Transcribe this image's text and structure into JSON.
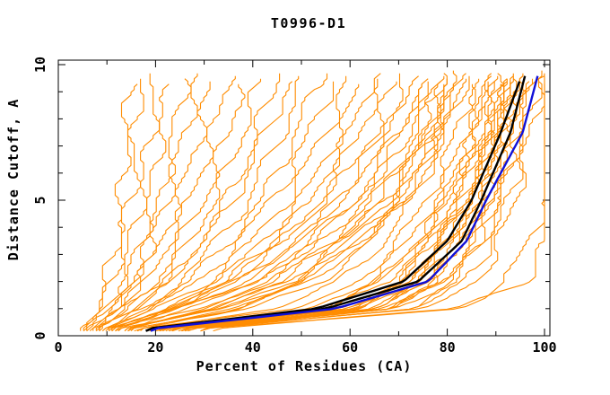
{
  "title": "T0996-D1",
  "chart_data": {
    "type": "line",
    "title": "T0996-D1",
    "xlabel": "Percent of Residues (CA)",
    "ylabel": "Distance Cutoff, A",
    "xlim": [
      0,
      101
    ],
    "ylim": [
      0,
      10.15
    ],
    "grid": false,
    "legend": "none",
    "x_major_ticks": [
      0,
      20,
      40,
      60,
      80,
      100
    ],
    "x_minor_ticks": [
      10,
      30,
      50,
      70,
      90
    ],
    "y_major_ticks": [
      0,
      5,
      10
    ],
    "y_minor_ticks": [
      1,
      2,
      3,
      4,
      6,
      7,
      8,
      9
    ],
    "colors": {
      "orange_models": "#ff8c00",
      "black_models": "#000000",
      "blue_model": "#1010d8",
      "frame": "#000000"
    },
    "anchor_cutoffs": [
      0.25,
      1,
      2,
      3.5,
      5,
      7.5,
      9.6
    ],
    "series": {
      "orange_models": [
        [
          5,
          8,
          10,
          12,
          13,
          14,
          15
        ],
        [
          5,
          9,
          11,
          13,
          15,
          16,
          17
        ],
        [
          6,
          10,
          13,
          15,
          17,
          19,
          20
        ],
        [
          6,
          11,
          14,
          17,
          19,
          21,
          23
        ],
        [
          7,
          12,
          16,
          19,
          21,
          24,
          26
        ],
        [
          6,
          11,
          15,
          19,
          22,
          26,
          29
        ],
        [
          7,
          12,
          17,
          21,
          25,
          29,
          32
        ],
        [
          7,
          13,
          18,
          23,
          27,
          32,
          35
        ],
        [
          8,
          14,
          20,
          25,
          30,
          35,
          38
        ],
        [
          8,
          15,
          22,
          27,
          32,
          38,
          42
        ],
        [
          9,
          16,
          23,
          29,
          35,
          41,
          45
        ],
        [
          8,
          15,
          22,
          30,
          36,
          43,
          48
        ],
        [
          9,
          17,
          25,
          33,
          39,
          46,
          51
        ],
        [
          9,
          18,
          27,
          35,
          42,
          49,
          54
        ],
        [
          10,
          19,
          29,
          37,
          44,
          52,
          57
        ],
        [
          10,
          20,
          31,
          40,
          47,
          55,
          60
        ],
        [
          11,
          22,
          33,
          42,
          50,
          58,
          63
        ],
        [
          11,
          23,
          35,
          44,
          52,
          60,
          65
        ],
        [
          12,
          24,
          36,
          46,
          54,
          62,
          67
        ],
        [
          10,
          22,
          34,
          46,
          55,
          65,
          70
        ],
        [
          11,
          24,
          37,
          49,
          58,
          68,
          73
        ],
        [
          12,
          26,
          40,
          52,
          61,
          70,
          75
        ],
        [
          12,
          28,
          43,
          54,
          63,
          72,
          77
        ],
        [
          13,
          30,
          45,
          56,
          65,
          74,
          79
        ],
        [
          14,
          32,
          47,
          58,
          67,
          76,
          80
        ],
        [
          14,
          34,
          49,
          60,
          69,
          77,
          81
        ],
        [
          15,
          36,
          51,
          62,
          71,
          78,
          82
        ],
        [
          13,
          28,
          41,
          53,
          62,
          71,
          76
        ],
        [
          15,
          33,
          48,
          59,
          68,
          76,
          80
        ],
        [
          16,
          35,
          50,
          61,
          70,
          78,
          82
        ],
        [
          16,
          37,
          52,
          63,
          72,
          79,
          83
        ],
        [
          11,
          25,
          38,
          50,
          58,
          67,
          72
        ],
        [
          13,
          31,
          46,
          57,
          66,
          75,
          79
        ],
        [
          17,
          45,
          58,
          67,
          73,
          80,
          84
        ],
        [
          15,
          40,
          54,
          64,
          71,
          78,
          82
        ],
        [
          21,
          59,
          70,
          77,
          82,
          88,
          90
        ],
        [
          22,
          62,
          73,
          79,
          85,
          90,
          92
        ],
        [
          16,
          50,
          62,
          70,
          76,
          82,
          86
        ],
        [
          17,
          52,
          64,
          72,
          78,
          84,
          87
        ],
        [
          18,
          54,
          66,
          74,
          79,
          85,
          88
        ],
        [
          18,
          56,
          68,
          75,
          80,
          86,
          89
        ],
        [
          19,
          58,
          70,
          76,
          81,
          87,
          90
        ],
        [
          20,
          60,
          71,
          77,
          82,
          88,
          91
        ],
        [
          20,
          62,
          72,
          78,
          83,
          89,
          92
        ],
        [
          21,
          63,
          73,
          79,
          84,
          90,
          92
        ],
        [
          22,
          64,
          74,
          80,
          85,
          90,
          93
        ],
        [
          22,
          65,
          75,
          81,
          86,
          91,
          93
        ],
        [
          23,
          66,
          76,
          82,
          87,
          91,
          94
        ],
        [
          24,
          67,
          77,
          83,
          87,
          92,
          94
        ],
        [
          19,
          55,
          67,
          74,
          80,
          86,
          89
        ],
        [
          21,
          61,
          72,
          78,
          84,
          89,
          91
        ],
        [
          23,
          65,
          75,
          81,
          86,
          90,
          93
        ],
        [
          24,
          68,
          78,
          83,
          88,
          92,
          95
        ],
        [
          25,
          69,
          79,
          85,
          89,
          93,
          96
        ],
        [
          26,
          70,
          80,
          86,
          90,
          94,
          97
        ],
        [
          27,
          72,
          82,
          87,
          91,
          95,
          98
        ],
        [
          28,
          74,
          84,
          89,
          93,
          96,
          99
        ],
        [
          30,
          82,
          96,
          100,
          100,
          100,
          100
        ],
        [
          32,
          82,
          92,
          97,
          100,
          100,
          100
        ],
        [
          26,
          68,
          80,
          86,
          90,
          94,
          96
        ],
        [
          29,
          76,
          86,
          91,
          94,
          97,
          100
        ]
      ],
      "black_models": [
        [
          18,
          55,
          74,
          83,
          87,
          93,
          96
        ],
        [
          18,
          53,
          71,
          80,
          85,
          91,
          95.3
        ]
      ],
      "blue_model": [
        [
          19,
          57,
          76,
          84,
          88,
          95.5,
          98.6
        ]
      ]
    }
  }
}
